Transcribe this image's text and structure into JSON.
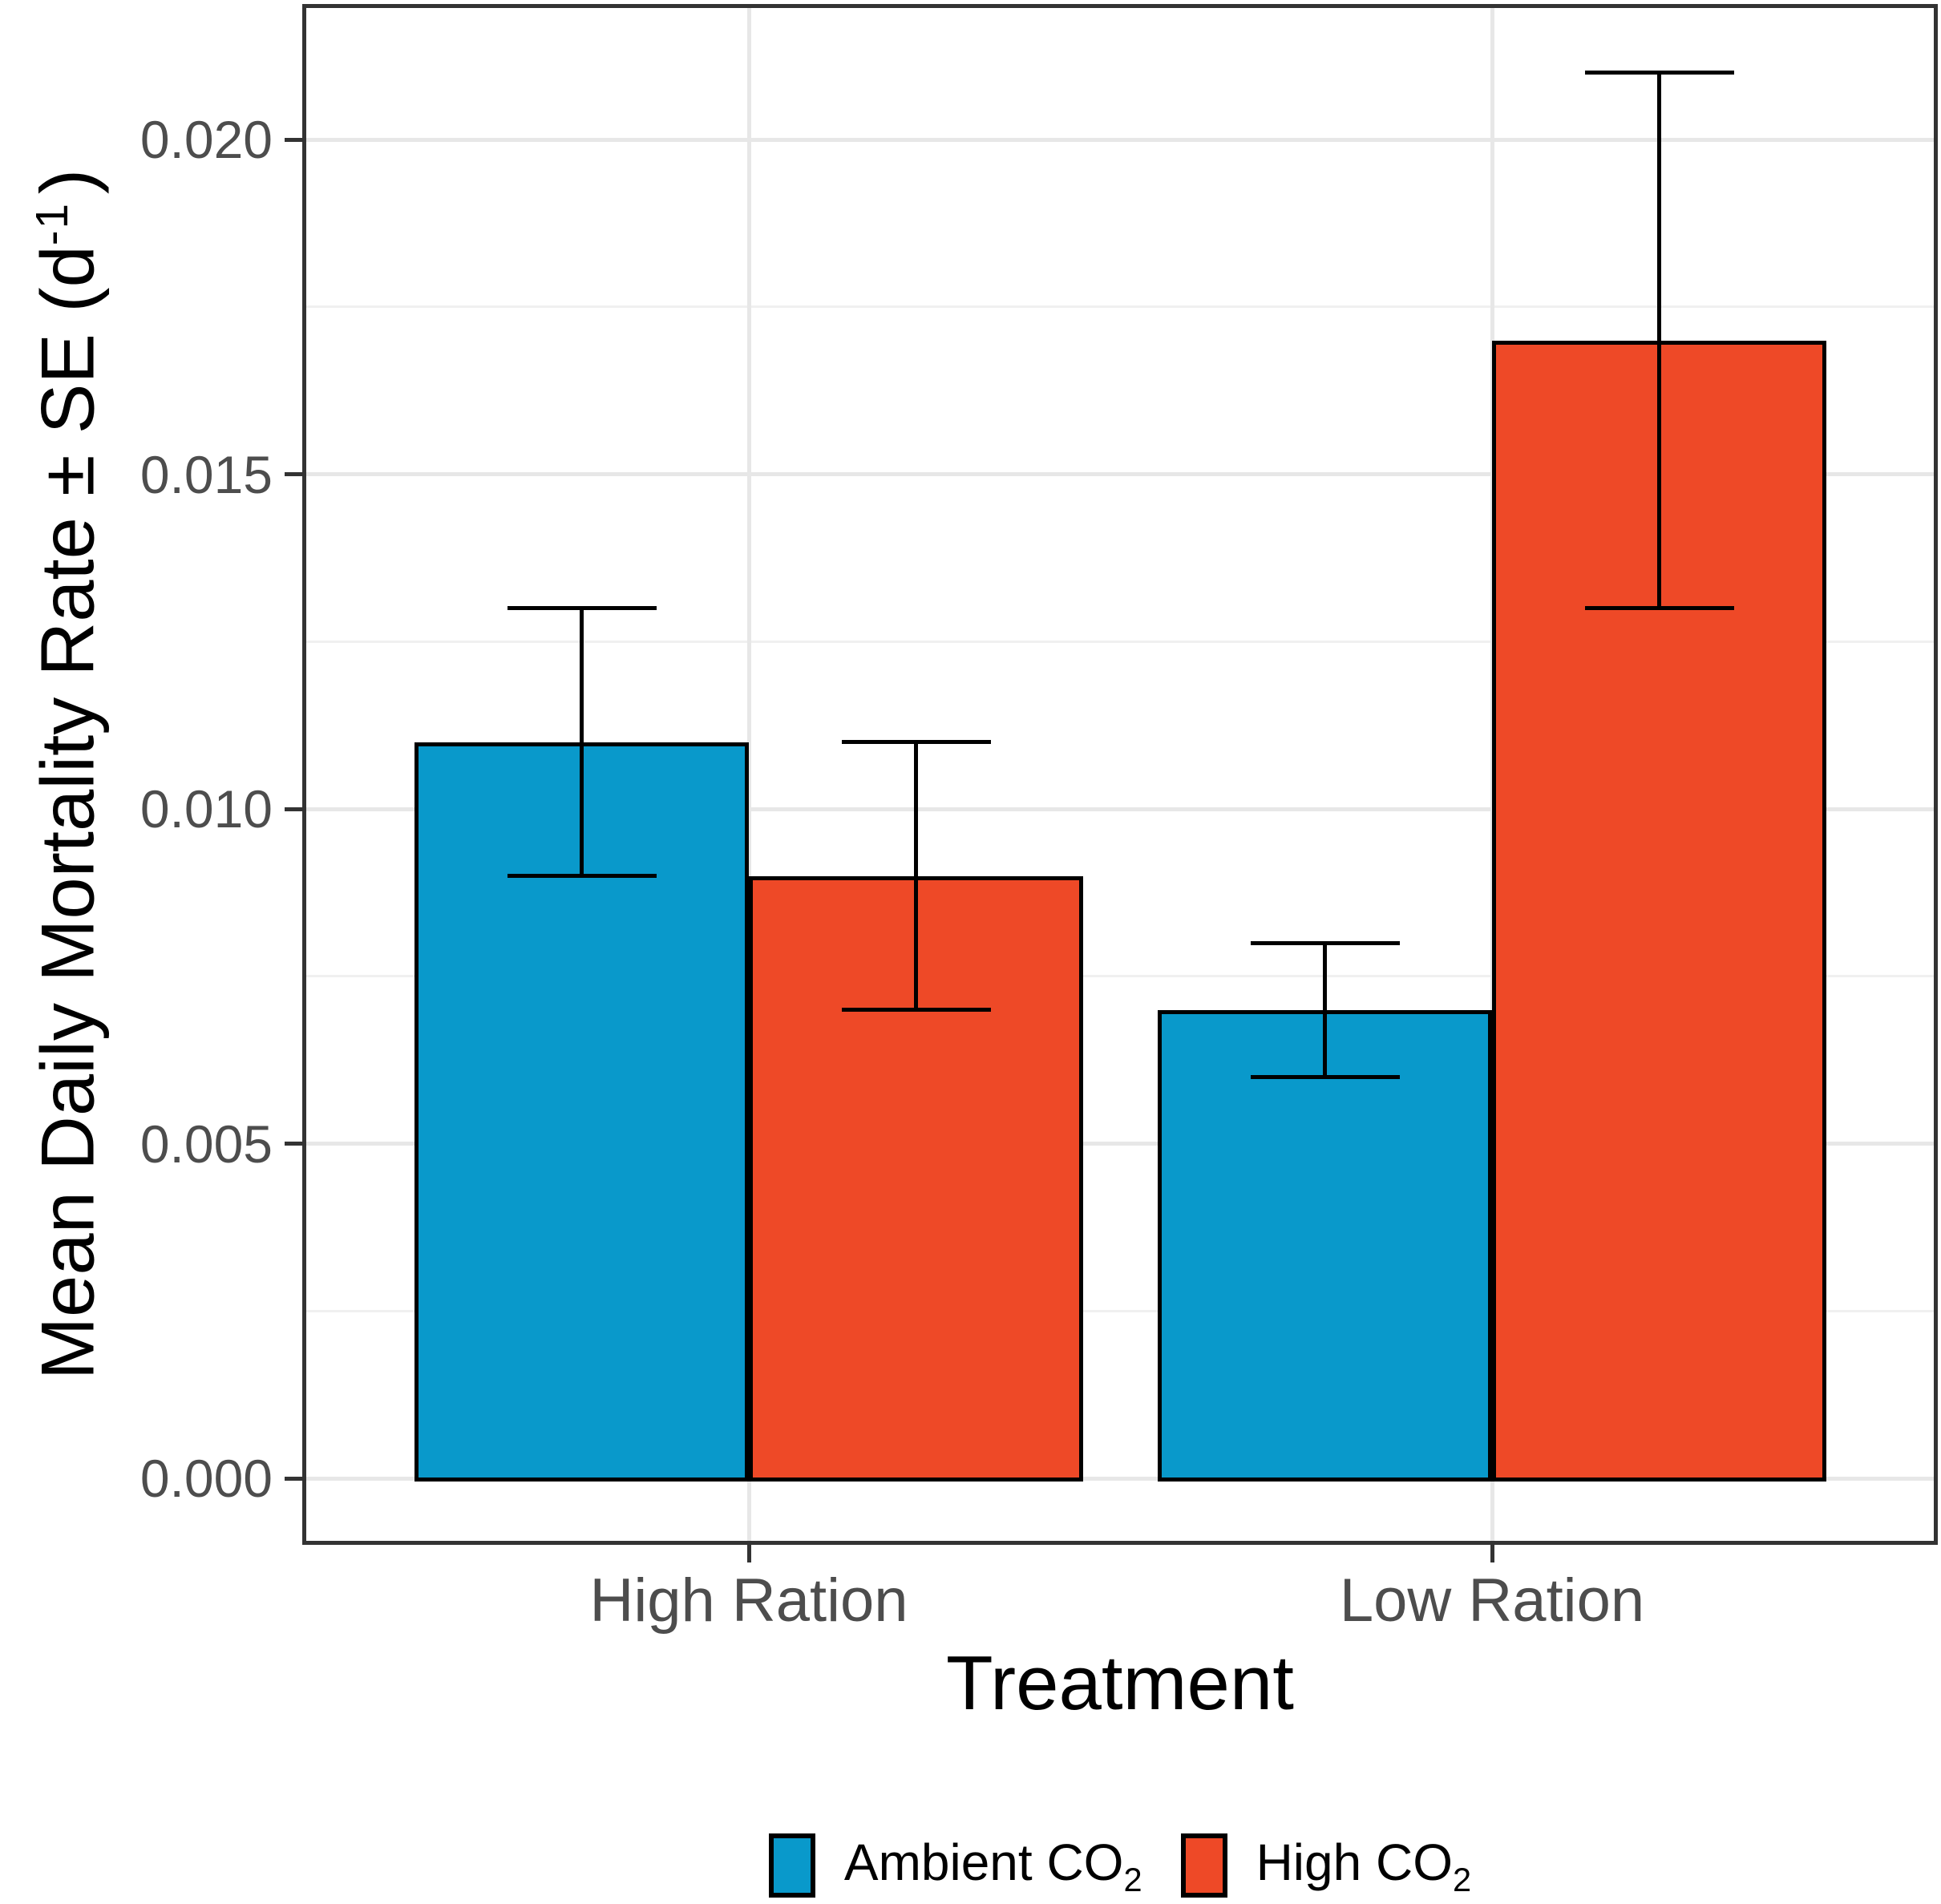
{
  "figure": {
    "background": "#ffffff"
  },
  "axes": {
    "y_title": {
      "main": "Mean Daily Mortality Rate ± SE (d",
      "sup": "-1",
      "close": ")"
    },
    "x_title": "Treatment",
    "y_tick_labels": [
      "0.000",
      "0.005",
      "0.010",
      "0.015",
      "0.020"
    ],
    "x_tick_labels": [
      "High Ration",
      "Low Ration"
    ]
  },
  "legend": {
    "items": [
      {
        "id": "ambient-co2",
        "label_main": "Ambient CO",
        "label_sub": "2",
        "color": "#0999CB"
      },
      {
        "id": "high-co2",
        "label_main": "High CO",
        "label_sub": "2",
        "color": "#EE4927"
      }
    ]
  },
  "chart_data": {
    "type": "bar",
    "title": "",
    "xlabel": "Treatment",
    "ylabel": "Mean Daily Mortality Rate ± SE (d^-1)",
    "categories": [
      "High Ration",
      "Low Ration"
    ],
    "series": [
      {
        "name": "Ambient CO2",
        "color": "#0999CB",
        "values": [
          0.011,
          0.007
        ],
        "err_low": [
          0.009,
          0.006
        ],
        "err_high": [
          0.013,
          0.008
        ]
      },
      {
        "name": "High CO2",
        "color": "#EE4927",
        "values": [
          0.009,
          0.017
        ],
        "err_low": [
          0.007,
          0.013
        ],
        "err_high": [
          0.011,
          0.021
        ]
      }
    ],
    "error_bars": "± SE",
    "ylim": [
      0,
      0.022
    ],
    "yticks": [
      0,
      0.005,
      0.01,
      0.015,
      0.02
    ],
    "minor_yticks": [
      0.0025,
      0.0075,
      0.0125,
      0.0175
    ],
    "grid": "horizontal major+minor, vertical major at category centers",
    "legend_position": "bottom"
  },
  "style": {
    "bar_outline": "#000000",
    "grid_major": "#e7e7e7",
    "grid_minor": "#f0f0f0",
    "axis_line": "#333333",
    "tick_text": "#4d4d4d",
    "title_text": "#000000"
  }
}
